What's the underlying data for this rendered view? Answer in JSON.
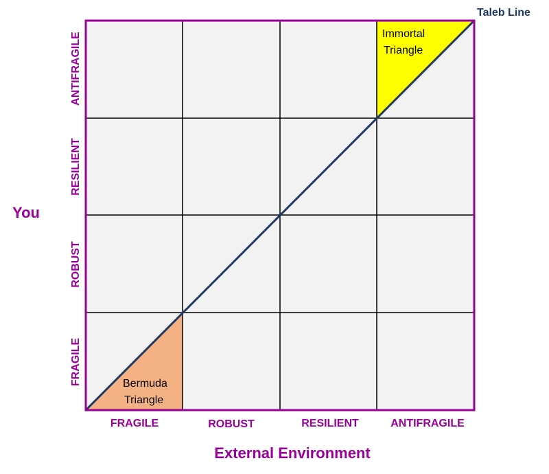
{
  "diagram": {
    "line_label": "Taleb Line",
    "y_axis_title": "You",
    "x_axis_title": "External Environment",
    "x_categories": [
      "FRAGILE",
      "ROBUST",
      "RESILIENT",
      "ANTIFRAGILE"
    ],
    "y_categories": [
      "FRAGILE",
      "ROBUST",
      "RESILIENT",
      "ANTIFRAGILE"
    ],
    "immortal_triangle": {
      "line1": "Immortal",
      "line2": "Triangle"
    },
    "bermuda_triangle": {
      "line1": "Bermuda",
      "line2": "Triangle"
    }
  },
  "colors": {
    "frame": "#990099",
    "grid": "#000000",
    "cell_bg": "#f2f2f2",
    "diagonal": "#1f3864",
    "immortal_fill": "#ffff00",
    "bermuda_fill": "#f4b183",
    "label": "#990099"
  }
}
